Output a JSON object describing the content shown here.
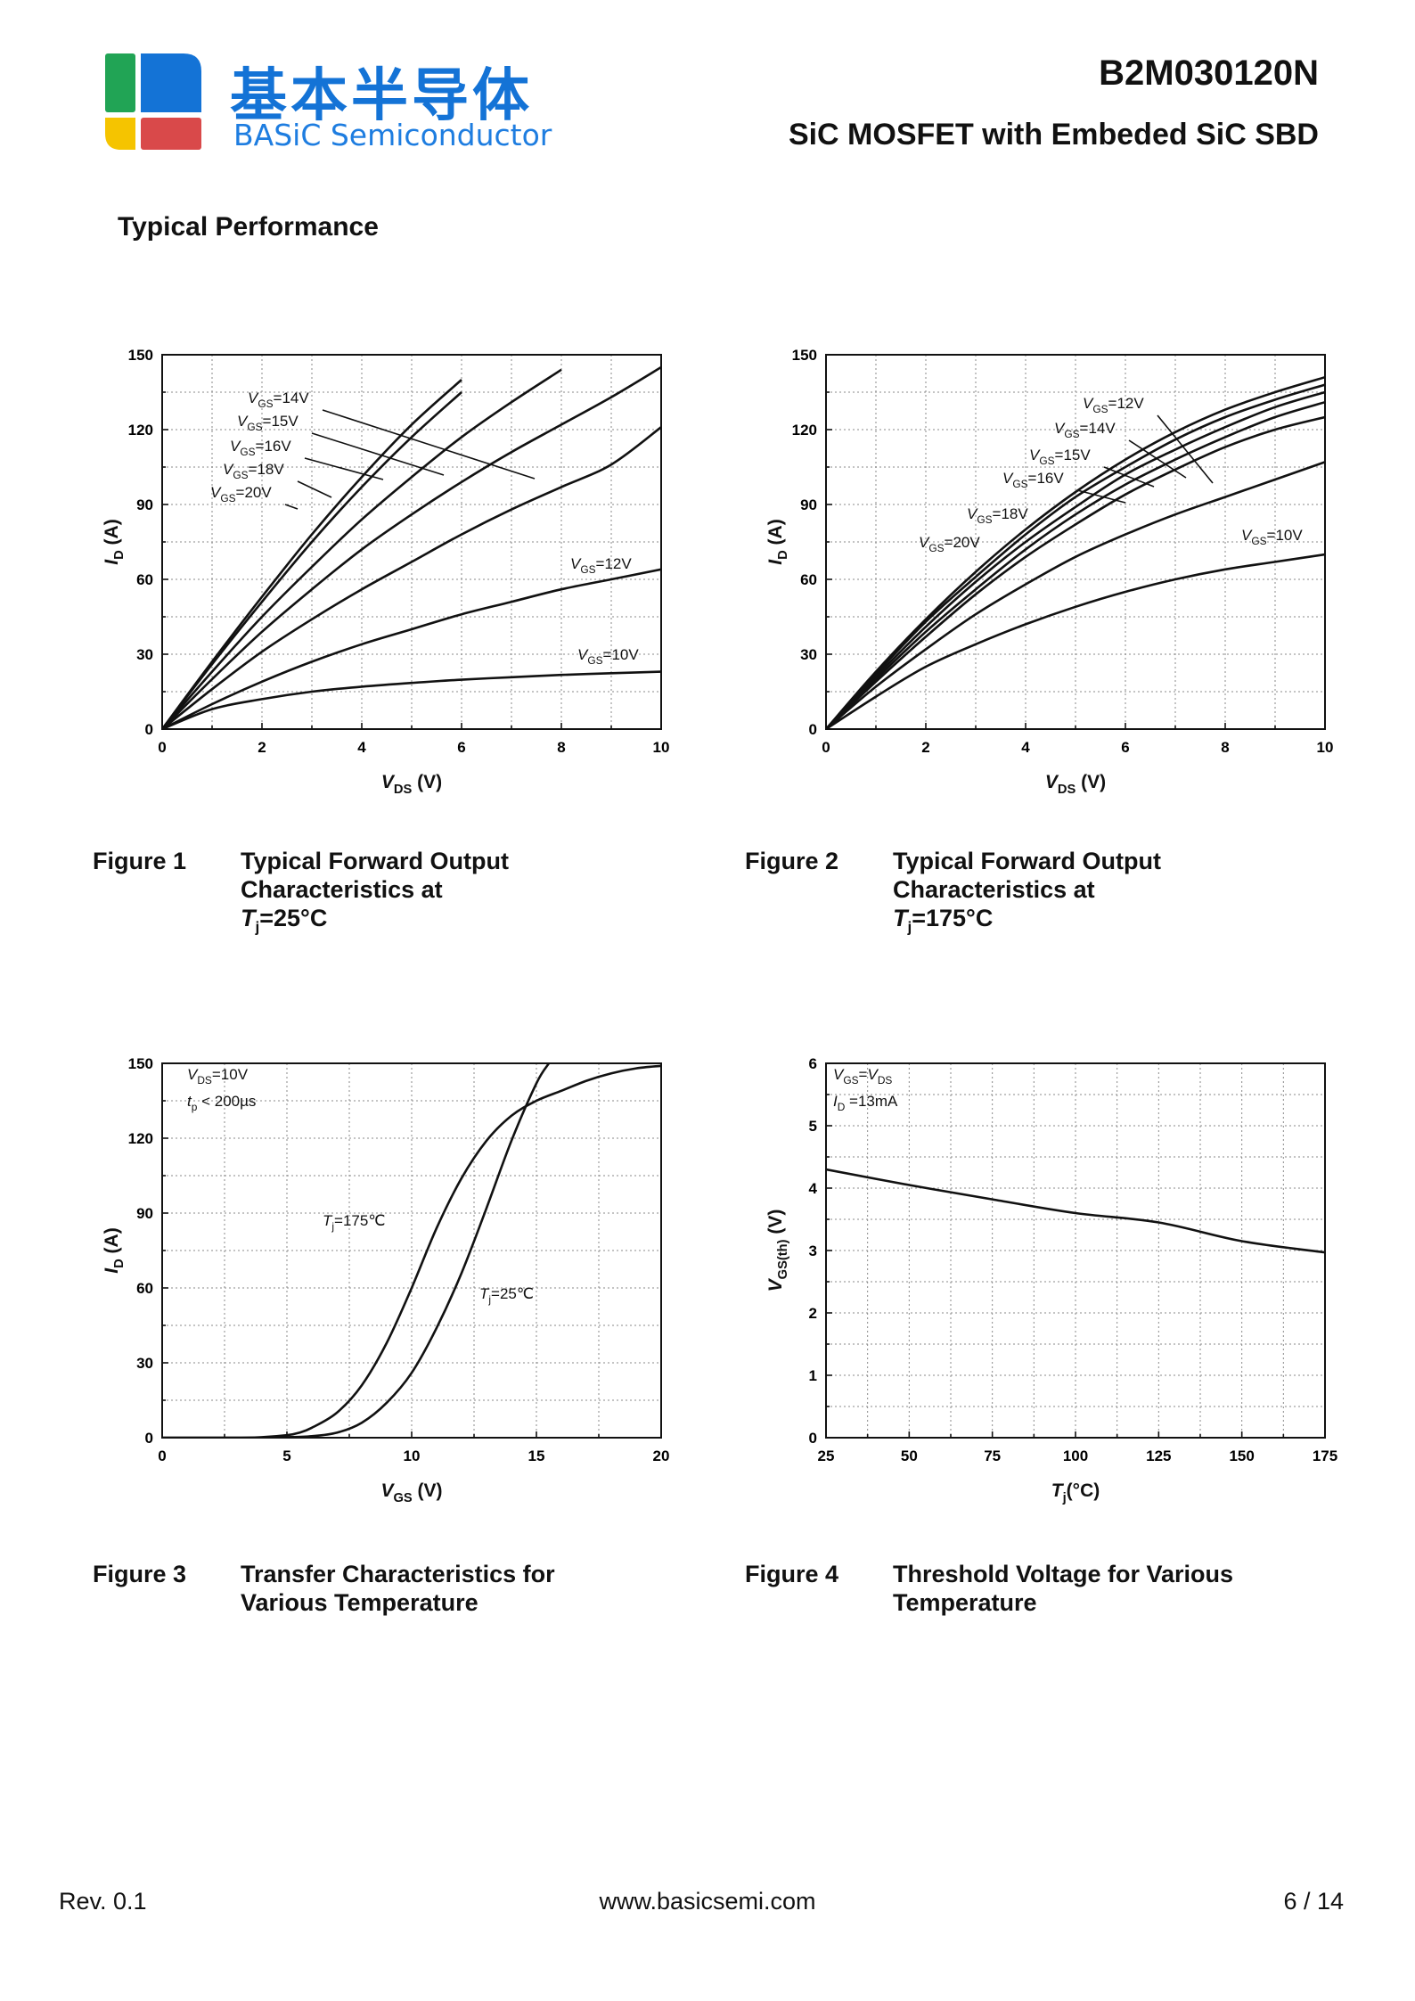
{
  "header": {
    "logo_cn": "基本半导体",
    "logo_en": "BASiC Semiconductor",
    "part_number": "B2M030120N",
    "description": "SiC MOSFET with Embeded SiC SBD",
    "colors": {
      "green": "#21a455",
      "blue": "#1473d6",
      "yellow": "#f5c400",
      "red": "#d9494a"
    }
  },
  "section_title": "Typical Performance",
  "figures": [
    {
      "number": "Figure 1",
      "caption_lines": [
        "Typical Forward Output",
        "Characteristics at"
      ],
      "caption_temp": "=25°C"
    },
    {
      "number": "Figure 2",
      "caption_lines": [
        "Typical Forward Output",
        "Characteristics at"
      ],
      "caption_temp": "=175°C"
    },
    {
      "number": "Figure 3",
      "caption_lines": [
        "Transfer Characteristics for",
        "Various Temperature"
      ]
    },
    {
      "number": "Figure 4",
      "caption_lines": [
        "Threshold Voltage for Various",
        "Temperature"
      ]
    }
  ],
  "footer": {
    "rev": "Rev. 0.1",
    "website": "www.basicsemi.com",
    "page": "6  /  14"
  },
  "chart_data": [
    {
      "type": "line",
      "xlabel": "V_DS (V)",
      "ylabel": "I_D (A)",
      "xlim": [
        0,
        10
      ],
      "ylim": [
        0,
        150
      ],
      "xticks": [
        0,
        2,
        4,
        6,
        8,
        10
      ],
      "yticks": [
        0,
        30,
        60,
        90,
        120,
        150
      ],
      "grid": true,
      "series": [
        {
          "name": "V_GS=20V",
          "x": [
            0,
            1,
            2,
            3,
            4,
            5,
            6
          ],
          "y": [
            0,
            27,
            53,
            78,
            101,
            122,
            140
          ]
        },
        {
          "name": "V_GS=18V",
          "x": [
            0,
            1,
            2,
            3,
            4,
            5,
            6
          ],
          "y": [
            0,
            26,
            51,
            75,
            97,
            117,
            135
          ]
        },
        {
          "name": "V_GS=16V",
          "x": [
            0,
            1,
            2,
            3,
            4,
            5,
            6,
            7,
            8
          ],
          "y": [
            0,
            23,
            45,
            65,
            84,
            101,
            117,
            131,
            144
          ]
        },
        {
          "name": "V_GS=15V",
          "x": [
            0,
            1,
            2,
            3,
            4,
            5,
            6,
            7,
            8,
            9,
            10
          ],
          "y": [
            0,
            20,
            39,
            56,
            72,
            86,
            99,
            111,
            122,
            133,
            145
          ]
        },
        {
          "name": "V_GS=14V",
          "x": [
            0,
            1,
            2,
            3,
            4,
            5,
            6,
            7,
            8,
            9,
            10
          ],
          "y": [
            0,
            16,
            31,
            44,
            56,
            67,
            78,
            88,
            97,
            106,
            121
          ]
        },
        {
          "name": "V_GS=12V",
          "x": [
            0,
            1,
            2,
            3,
            4,
            5,
            6,
            7,
            8,
            9,
            10
          ],
          "y": [
            0,
            10,
            19,
            27,
            34,
            40,
            46,
            51,
            56,
            60,
            64
          ]
        },
        {
          "name": "V_GS=10V",
          "x": [
            0,
            1,
            2,
            3,
            4,
            5,
            6,
            7,
            8,
            9,
            10
          ],
          "y": [
            0,
            8,
            12,
            15,
            17,
            18.5,
            19.8,
            20.8,
            21.7,
            22.4,
            23
          ]
        }
      ],
      "annotations": [
        {
          "base": "V",
          "sub": "GS",
          "text": "=14V"
        },
        {
          "base": "V",
          "sub": "GS",
          "text": "=15V"
        },
        {
          "base": "V",
          "sub": "GS",
          "text": "=16V"
        },
        {
          "base": "V",
          "sub": "GS",
          "text": "=18V"
        },
        {
          "base": "V",
          "sub": "GS",
          "text": "=20V"
        },
        {
          "base": "V",
          "sub": "GS",
          "text": "=12V"
        },
        {
          "base": "V",
          "sub": "GS",
          "text": "=10V"
        }
      ]
    },
    {
      "type": "line",
      "xlabel": "V_DS (V)",
      "ylabel": "I_D (A)",
      "xlim": [
        0,
        10
      ],
      "ylim": [
        0,
        150
      ],
      "xticks": [
        0,
        2,
        4,
        6,
        8,
        10
      ],
      "yticks": [
        0,
        30,
        60,
        90,
        120,
        150
      ],
      "grid": true,
      "series": [
        {
          "name": "V_GS=20V",
          "x": [
            0,
            1,
            2,
            3,
            4,
            5,
            6,
            7,
            8,
            9,
            10
          ],
          "y": [
            0,
            23,
            44,
            63,
            80,
            95,
            108,
            119,
            128,
            135,
            141
          ]
        },
        {
          "name": "V_GS=18V",
          "x": [
            0,
            1,
            2,
            3,
            4,
            5,
            6,
            7,
            8,
            9,
            10
          ],
          "y": [
            0,
            22,
            43,
            61,
            78,
            93,
            105,
            116,
            125,
            132,
            138
          ]
        },
        {
          "name": "V_GS=16V",
          "x": [
            0,
            1,
            2,
            3,
            4,
            5,
            6,
            7,
            8,
            9,
            10
          ],
          "y": [
            0,
            21,
            41,
            59,
            75,
            89,
            102,
            112,
            121,
            129,
            135
          ]
        },
        {
          "name": "V_GS=15V",
          "x": [
            0,
            1,
            2,
            3,
            4,
            5,
            6,
            7,
            8,
            9,
            10
          ],
          "y": [
            0,
            20,
            39,
            56,
            72,
            86,
            98,
            108,
            117,
            125,
            131
          ]
        },
        {
          "name": "V_GS=14V",
          "x": [
            0,
            1,
            2,
            3,
            4,
            5,
            6,
            7,
            8,
            9,
            10
          ],
          "y": [
            0,
            19,
            37,
            54,
            69,
            82,
            94,
            104,
            113,
            120,
            125
          ]
        },
        {
          "name": "V_GS=12V",
          "x": [
            0,
            1,
            2,
            3,
            4,
            5,
            6,
            7,
            8,
            9,
            10
          ],
          "y": [
            0,
            17,
            32,
            46,
            58,
            69,
            78,
            86,
            93,
            100,
            107
          ]
        },
        {
          "name": "V_GS=10V",
          "x": [
            0,
            1,
            2,
            3,
            4,
            5,
            6,
            7,
            8,
            9,
            10
          ],
          "y": [
            0,
            13,
            25,
            34,
            42,
            49,
            55,
            60,
            64,
            67,
            70
          ]
        }
      ],
      "annotations": [
        {
          "base": "V",
          "sub": "GS",
          "text": "=12V"
        },
        {
          "base": "V",
          "sub": "GS",
          "text": "=14V"
        },
        {
          "base": "V",
          "sub": "GS",
          "text": "=15V"
        },
        {
          "base": "V",
          "sub": "GS",
          "text": "=16V"
        },
        {
          "base": "V",
          "sub": "GS",
          "text": "=18V"
        },
        {
          "base": "V",
          "sub": "GS",
          "text": "=20V"
        },
        {
          "base": "V",
          "sub": "GS",
          "text": "=10V"
        }
      ]
    },
    {
      "type": "line",
      "xlabel": "V_GS (V)",
      "ylabel": "I_D (A)",
      "xlim": [
        0,
        20
      ],
      "ylim": [
        0,
        150
      ],
      "xticks": [
        0,
        5,
        10,
        15,
        20
      ],
      "yticks": [
        0,
        30,
        60,
        90,
        120,
        150
      ],
      "grid": true,
      "series": [
        {
          "name": "T_j=175°C",
          "x": [
            0,
            3,
            4,
            5,
            5.5,
            6,
            7,
            8,
            9,
            10,
            11,
            12,
            13,
            14,
            15,
            16,
            17,
            18,
            19,
            20
          ],
          "y": [
            0,
            0,
            0.2,
            1,
            2,
            4,
            10,
            21,
            38,
            60,
            84,
            104,
            119,
            129,
            135,
            139,
            143,
            146,
            148,
            149
          ]
        },
        {
          "name": "T_j=25°C",
          "x": [
            0,
            4,
            5,
            6,
            7,
            8,
            9,
            10,
            11,
            12,
            13,
            14,
            15,
            15.5
          ],
          "y": [
            0,
            0,
            0.2,
            0.6,
            2,
            6,
            14,
            26,
            44,
            66,
            92,
            119,
            142,
            150
          ]
        }
      ],
      "annotations": [
        {
          "base": "V",
          "sub": "DS",
          "text": "=10V"
        },
        {
          "base": "t",
          "sub": "p",
          "text": " < 200µs"
        },
        {
          "base": "T",
          "sub": "j",
          "text": "=175℃"
        },
        {
          "base": "T",
          "sub": "j",
          "text": "=25℃"
        }
      ]
    },
    {
      "type": "line",
      "xlabel": "T_j(°C)",
      "ylabel": "V_GS(th) (V)",
      "xlim": [
        25,
        175
      ],
      "ylim": [
        0,
        6
      ],
      "xticks": [
        25,
        50,
        75,
        100,
        125,
        150,
        175
      ],
      "yticks": [
        0,
        1,
        2,
        3,
        4,
        5,
        6
      ],
      "grid": true,
      "series": [
        {
          "name": "V_GS(th)",
          "x": [
            25,
            50,
            75,
            100,
            125,
            150,
            175
          ],
          "y": [
            4.3,
            4.05,
            3.82,
            3.6,
            3.45,
            3.15,
            2.97
          ]
        }
      ],
      "annotations": [
        {
          "base": "V",
          "sub": "GS",
          "text": "=",
          "base2": "V",
          "sub2": "DS"
        },
        {
          "base": "I",
          "sub": "D",
          "text": " =13mA"
        }
      ]
    }
  ]
}
